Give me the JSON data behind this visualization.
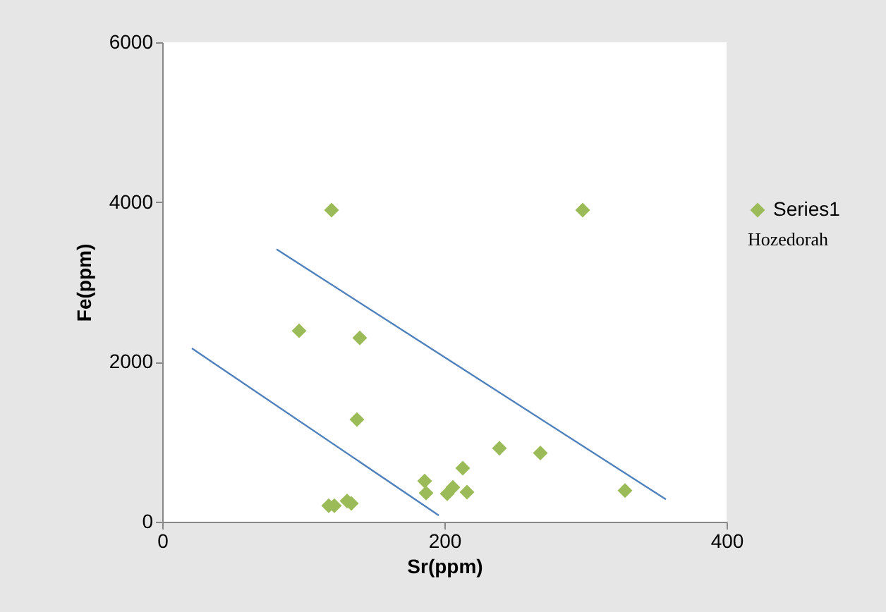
{
  "chart_data": {
    "type": "scatter",
    "xlabel": "Sr(ppm)",
    "ylabel": "Fe(ppm)",
    "xlim": [
      0,
      400
    ],
    "xticks": [
      0,
      200,
      400
    ],
    "ylim": [
      0,
      6000
    ],
    "yticks": [
      0,
      2000,
      4000,
      6000
    ],
    "grid": false,
    "legend": "right",
    "marker": "diamond",
    "annotations": [
      "Hozedorah"
    ],
    "series": [
      {
        "name": "Series1",
        "color": "#9bbb59",
        "x": [
          120,
          298,
          97,
          140,
          138,
          239,
          268,
          213,
          186,
          187,
          202,
          206,
          216,
          328,
          118,
          122,
          131,
          134
        ],
        "values": [
          3900,
          3900,
          2390,
          2300,
          1280,
          920,
          860,
          670,
          510,
          360,
          350,
          430,
          370,
          390,
          200,
          200,
          260,
          230
        ]
      },
      {
        "type": "line",
        "color": "#4f81bd",
        "line_style": "solid",
        "marker": "none",
        "x": [
          81,
          357
        ],
        "values": [
          3410,
          280
        ]
      },
      {
        "type": "line",
        "color": "#4f81bd",
        "line_style": "solid",
        "marker": "none",
        "x": [
          21,
          196
        ],
        "values": [
          2170,
          80
        ]
      }
    ]
  }
}
